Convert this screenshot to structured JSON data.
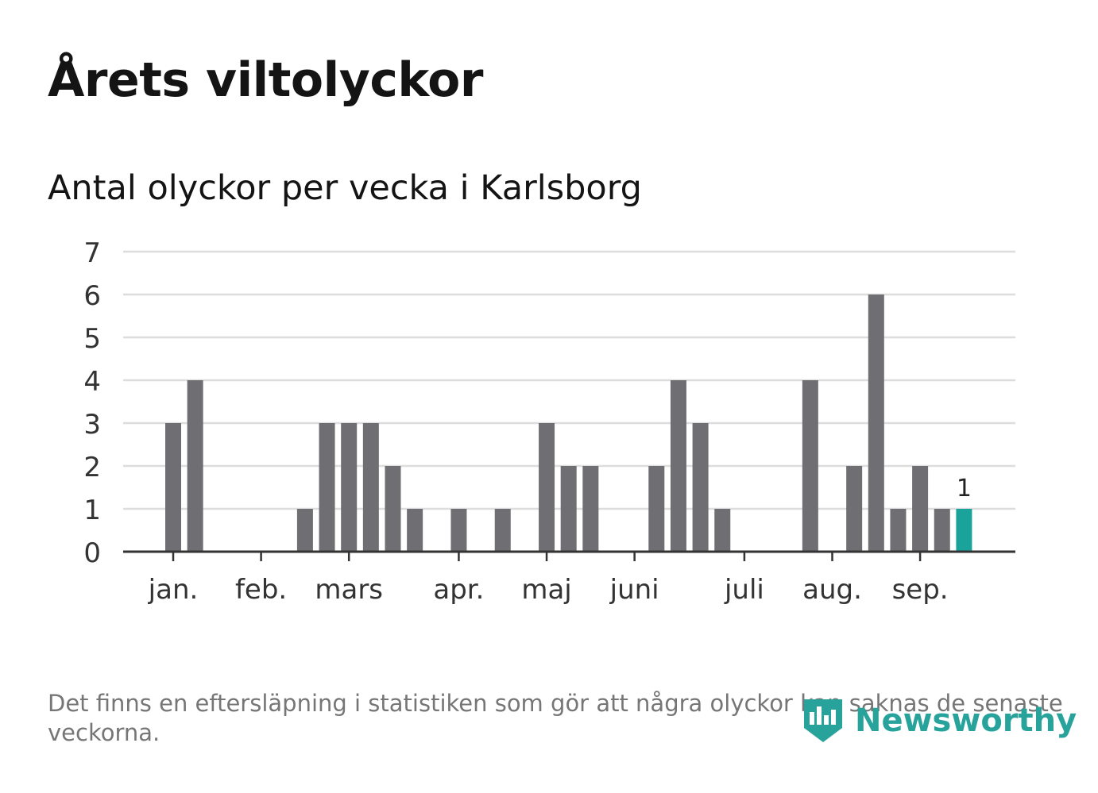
{
  "title": "Årets viltolyckor",
  "subtitle": "Antal olyckor per vecka i Karlsborg",
  "footnote": "Det finns en eftersläpning i statistiken som gör att några olyckor kan saknas de senaste veckorna.",
  "logo": {
    "text": "Newsworthy",
    "icon": "bar-chart-speech-bubble-icon"
  },
  "colors": {
    "bar": "#6f6e73",
    "highlight": "#1aa39a",
    "grid": "#dddddd",
    "axis": "#333333",
    "text": "#333333"
  },
  "chart_data": {
    "type": "bar",
    "title": "Antal olyckor per vecka i Karlsborg",
    "xlabel": "",
    "ylabel": "",
    "ylim": [
      0,
      7
    ],
    "yticks": [
      0,
      1,
      2,
      3,
      4,
      5,
      6,
      7
    ],
    "grid": true,
    "x_tick_labels": [
      "jan.",
      "feb.",
      "mars",
      "apr.",
      "maj",
      "juni",
      "juli",
      "aug.",
      "sep."
    ],
    "x_tick_weeks": [
      1,
      5,
      9,
      14,
      18,
      22,
      27,
      31,
      35
    ],
    "weeks": [
      1,
      2,
      3,
      4,
      5,
      6,
      7,
      8,
      9,
      10,
      11,
      12,
      13,
      14,
      15,
      16,
      17,
      18,
      19,
      20,
      21,
      22,
      23,
      24,
      25,
      26,
      27,
      28,
      29,
      30,
      31,
      32,
      33,
      34,
      35,
      36,
      37
    ],
    "values": [
      3,
      4,
      0,
      0,
      0,
      0,
      1,
      3,
      3,
      3,
      2,
      1,
      0,
      1,
      0,
      1,
      0,
      3,
      2,
      2,
      0,
      0,
      2,
      4,
      3,
      1,
      0,
      0,
      0,
      4,
      0,
      2,
      6,
      1,
      2,
      1,
      1
    ],
    "highlight_week": 37,
    "highlight_label": "1"
  }
}
